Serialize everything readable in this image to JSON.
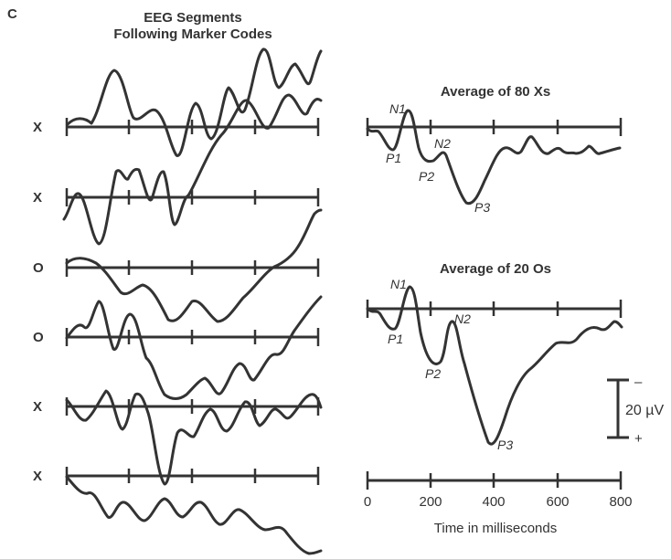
{
  "panel_label": "C",
  "left": {
    "title_line1": "EEG Segments",
    "title_line2": "Following Marker Codes",
    "rows": [
      {
        "code": "X"
      },
      {
        "code": "X"
      },
      {
        "code": "O"
      },
      {
        "code": "O"
      },
      {
        "code": "X"
      },
      {
        "code": "X"
      }
    ]
  },
  "right": {
    "top_title": "Average of 80 Xs",
    "bottom_title": "Average of 20 Os",
    "top_peaks": {
      "n1": "N1",
      "p1": "P1",
      "n2": "N2",
      "p2": "P2",
      "p3": "P3"
    },
    "bottom_peaks": {
      "n1": "N1",
      "p1": "P1",
      "n2": "N2",
      "p2": "P2",
      "p3": "P3"
    }
  },
  "scale_bar": {
    "minus": "–",
    "label": "20 µV",
    "plus": "+"
  },
  "time_axis": {
    "ticks": [
      "0",
      "200",
      "400",
      "600",
      "800"
    ],
    "label": "Time in milliseconds"
  }
}
